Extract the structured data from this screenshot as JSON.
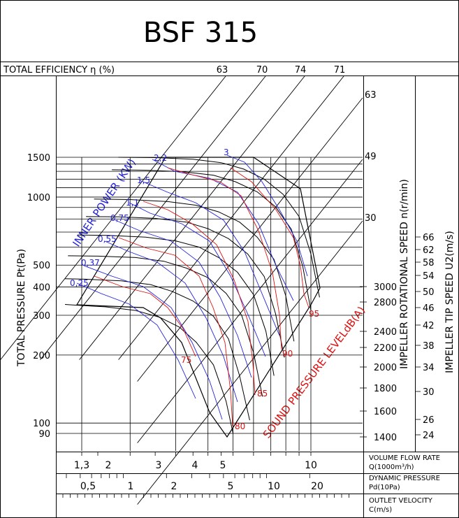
{
  "chart_data": {
    "type": "line",
    "title": "BSF 315",
    "xlabel": "Q(1000m³/h)",
    "ylabel": "TOTAL PRESSURE Pt(Pa)",
    "x_scale": "log",
    "y_scale": "log",
    "xlim": [
      1.12,
      13
    ],
    "ylim": [
      78,
      1850
    ],
    "header": {
      "label": "TOTAL EFFICIENCY η (%)",
      "efficiency_values": [
        "63",
        "70",
        "74",
        "71"
      ]
    },
    "y_ticks": [
      "1500",
      "1000",
      "500",
      "400",
      "300",
      "200",
      "100",
      "90"
    ],
    "y_tick_values": [
      1500,
      1000,
      500,
      400,
      300,
      200,
      100,
      90
    ],
    "rotational_speed": {
      "label": "IMPELLER ROTATIONAL SPEED n(r/min)",
      "ticks": [
        "3000",
        "2800",
        "2400",
        "2200",
        "2000",
        "1800",
        "1600",
        "1400"
      ],
      "tick_values": [
        3000,
        2800,
        2400,
        2200,
        2000,
        1800,
        1600,
        1400
      ]
    },
    "tip_speed": {
      "label": "IMPELLER TIP SPEED U2(m/s)",
      "ticks": [
        "66",
        "62",
        "58",
        "54",
        "50",
        "46",
        "42",
        "38",
        "34",
        "30",
        "26",
        "24"
      ],
      "tick_values": [
        66,
        62,
        58,
        54,
        50,
        46,
        42,
        38,
        34,
        30,
        26,
        24
      ]
    },
    "efficiency_right_labels": [
      "63",
      "49",
      "30"
    ],
    "inner_power": {
      "label": "INNER POWER (KW)",
      "values": [
        "2,2",
        "1,5",
        "1,1",
        "0,75",
        "0,55",
        "0,37",
        "0,25",
        "3"
      ]
    },
    "sound": {
      "label": "SOUND PRESSURE LEVELdB(A)",
      "values": [
        "75",
        "80",
        "85",
        "90",
        "95"
      ]
    },
    "flow_axis": {
      "label_line1": "VOLUME FLOW RATE",
      "label_line2": "Q(1000m³/h)",
      "ticks": [
        "1,3",
        "2",
        "3",
        "4",
        "5",
        "10"
      ],
      "tick_values": [
        1.3,
        2,
        3,
        4,
        5,
        10
      ]
    },
    "dynamic_axis": {
      "label_line1": "DYNAMIC PRESSURE",
      "label_line2": "Pd(10Pa)",
      "ticks": [
        "0,5",
        "1",
        "2",
        "5",
        "10",
        "20"
      ]
    },
    "outlet_axis": {
      "label_line1": "OUTLET VELOCITY",
      "label_line2": "C(m/s)"
    },
    "series": [
      {
        "speed": 3000,
        "x": [
          1.8,
          2.5,
          3.5,
          4.5,
          5.5,
          6.6,
          7.8,
          9.0,
          10.0,
          10.8
        ],
        "y": [
          1500,
          1495,
          1470,
          1420,
          1330,
          1200,
          1030,
          820,
          560,
          360
        ]
      },
      {
        "speed": 2800,
        "x": [
          1.7,
          2.3,
          3.2,
          4.2,
          5.1,
          6.2,
          7.3,
          8.4,
          9.3,
          10.0
        ],
        "y": [
          1320,
          1315,
          1295,
          1250,
          1170,
          1055,
          905,
          720,
          495,
          315
        ]
      },
      {
        "speed": 2400,
        "x": [
          1.45,
          2.0,
          2.8,
          3.6,
          4.4,
          5.3,
          6.2,
          7.2,
          8.0,
          8.6
        ],
        "y": [
          980,
          975,
          955,
          920,
          860,
          775,
          665,
          530,
          365,
          230
        ]
      },
      {
        "speed": 2200,
        "x": [
          1.35,
          1.8,
          2.5,
          3.3,
          4.0,
          4.8,
          5.7,
          6.6,
          7.3,
          7.9
        ],
        "y": [
          820,
          818,
          805,
          775,
          725,
          655,
          560,
          445,
          305,
          195
        ]
      },
      {
        "speed": 2000,
        "x": [
          1.25,
          1.65,
          2.3,
          3.0,
          3.7,
          4.4,
          5.2,
          6.0,
          6.7,
          7.2
        ],
        "y": [
          680,
          677,
          665,
          640,
          600,
          540,
          465,
          370,
          255,
          162
        ]
      },
      {
        "speed": 1800,
        "x": [
          1.15,
          1.5,
          2.1,
          2.7,
          3.3,
          4.0,
          4.7,
          5.4,
          6.0,
          6.5
        ],
        "y": [
          550,
          548,
          540,
          520,
          485,
          440,
          375,
          300,
          205,
          131
        ]
      },
      {
        "speed": 1600,
        "x": [
          1.12,
          1.35,
          1.85,
          2.4,
          2.9,
          3.5,
          4.2,
          4.8,
          5.3,
          5.8
        ],
        "y": [
          435,
          433,
          426,
          410,
          383,
          347,
          297,
          236,
          162,
          103
        ]
      },
      {
        "speed": 1400,
        "x": [
          1.12,
          1.2,
          1.6,
          2.1,
          2.6,
          3.1,
          3.6,
          4.2,
          4.7,
          5.0
        ],
        "y": [
          335,
          333,
          327,
          315,
          294,
          266,
          228,
          181,
          125,
          90
        ]
      }
    ]
  }
}
